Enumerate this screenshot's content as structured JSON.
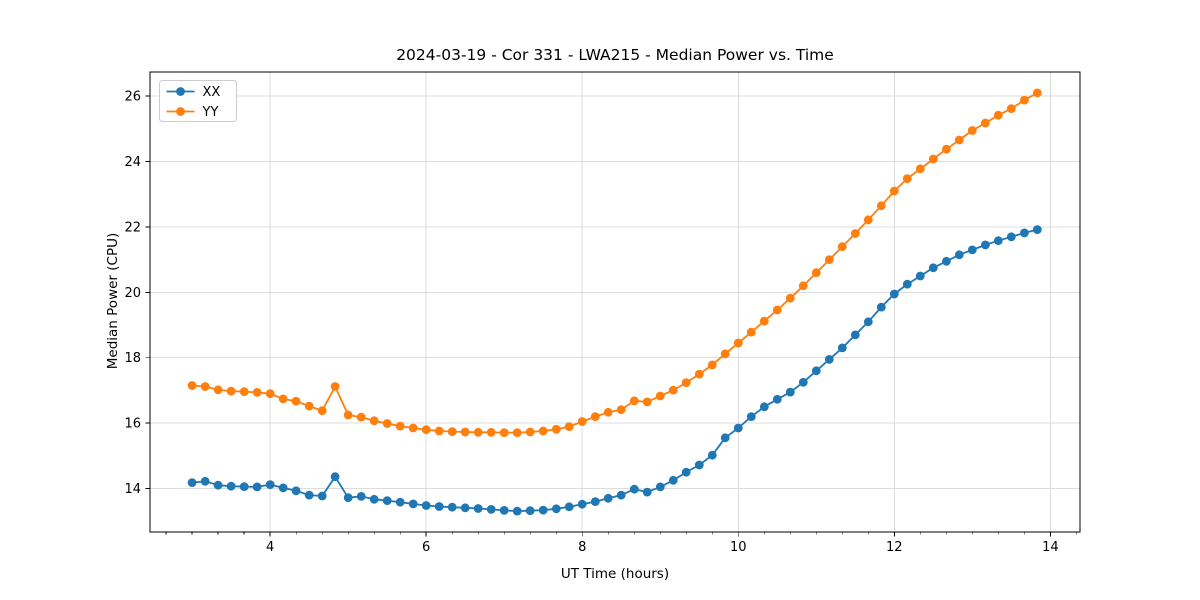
{
  "chart_data": {
    "type": "line",
    "title": "2024-03-19 - Cor 331 - LWA215 - Median Power vs. Time",
    "xlabel": "UT Time (hours)",
    "ylabel": "Median Power (CPU)",
    "xlim": [
      2.46,
      14.38
    ],
    "ylim": [
      12.67,
      26.74
    ],
    "xticks": [
      4,
      6,
      8,
      10,
      12,
      14
    ],
    "yticks": [
      14,
      16,
      18,
      20,
      22,
      24,
      26
    ],
    "x_minor_step": 0.33333,
    "grid": true,
    "grid_color": "#dcdcdc",
    "spine_color": "#000000",
    "background": "#ffffff",
    "legend_position": "upper left",
    "marker": "o",
    "x": [
      3.0,
      3.167,
      3.333,
      3.5,
      3.667,
      3.833,
      4.0,
      4.167,
      4.333,
      4.5,
      4.667,
      4.833,
      5.0,
      5.167,
      5.333,
      5.5,
      5.667,
      5.833,
      6.0,
      6.167,
      6.333,
      6.5,
      6.667,
      6.833,
      7.0,
      7.167,
      7.333,
      7.5,
      7.667,
      7.833,
      8.0,
      8.167,
      8.333,
      8.5,
      8.667,
      8.833,
      9.0,
      9.167,
      9.333,
      9.5,
      9.667,
      9.833,
      10.0,
      10.167,
      10.333,
      10.5,
      10.667,
      10.833,
      11.0,
      11.167,
      11.333,
      11.5,
      11.667,
      11.833,
      12.0,
      12.167,
      12.333,
      12.5,
      12.667,
      12.833,
      13.0,
      13.167,
      13.333,
      13.5,
      13.667,
      13.833
    ],
    "series": [
      {
        "name": "XX",
        "color": "#1f77b4",
        "values": [
          14.18,
          14.22,
          14.1,
          14.07,
          14.06,
          14.05,
          14.12,
          14.02,
          13.93,
          13.8,
          13.77,
          14.36,
          13.72,
          13.76,
          13.67,
          13.63,
          13.58,
          13.53,
          13.48,
          13.45,
          13.43,
          13.41,
          13.39,
          13.36,
          13.33,
          13.31,
          13.32,
          13.34,
          13.38,
          13.44,
          13.52,
          13.6,
          13.7,
          13.8,
          13.98,
          13.89,
          14.05,
          14.25,
          14.5,
          14.72,
          15.02,
          15.55,
          15.85,
          16.2,
          16.5,
          16.73,
          16.95,
          17.25,
          17.6,
          17.95,
          18.3,
          18.7,
          19.1,
          19.55,
          19.95,
          20.25,
          20.5,
          20.75,
          20.95,
          21.15,
          21.3,
          21.45,
          21.58,
          21.7,
          21.82,
          21.92
        ]
      },
      {
        "name": "YY",
        "color": "#ff7f0e",
        "values": [
          17.15,
          17.12,
          17.02,
          16.98,
          16.96,
          16.94,
          16.9,
          16.74,
          16.67,
          16.52,
          16.38,
          17.12,
          16.25,
          16.18,
          16.07,
          15.99,
          15.91,
          15.85,
          15.8,
          15.76,
          15.74,
          15.73,
          15.72,
          15.72,
          15.71,
          15.71,
          15.73,
          15.76,
          15.81,
          15.89,
          16.05,
          16.2,
          16.33,
          16.41,
          16.68,
          16.65,
          16.83,
          17.01,
          17.24,
          17.5,
          17.78,
          18.12,
          18.45,
          18.78,
          19.12,
          19.46,
          19.82,
          20.2,
          20.6,
          21.0,
          21.4,
          21.8,
          22.22,
          22.65,
          23.1,
          23.48,
          23.78,
          24.08,
          24.38,
          24.66,
          24.95,
          25.18,
          25.42,
          25.62,
          25.88,
          26.1
        ]
      }
    ]
  }
}
